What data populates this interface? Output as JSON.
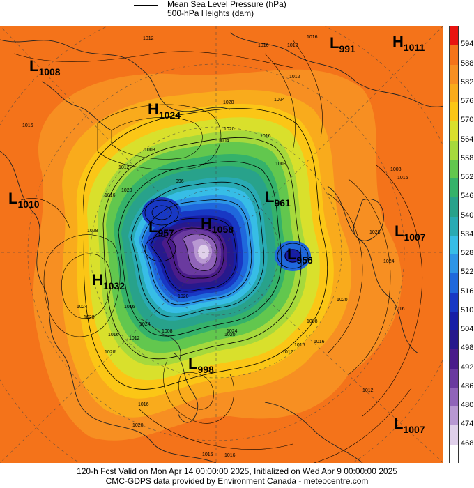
{
  "legend": {
    "line1": "Mean Sea Level Pressure (hPa)",
    "line2": "500-hPa Heights (dam)"
  },
  "footer": {
    "line1": "120-h Fcst Valid on Mon Apr 14 00:00:00 2025, Initialized on Wed Apr  9 00:00:00 2025",
    "line2": "CMC-GDPS data provided by Environment Canada - meteocentre.com"
  },
  "colorbar": {
    "labels": [
      "594",
      "588",
      "582",
      "576",
      "570",
      "564",
      "558",
      "552",
      "546",
      "540",
      "534",
      "528",
      "522",
      "516",
      "510",
      "504",
      "498",
      "492",
      "486",
      "480",
      "474",
      "468"
    ],
    "colors": [
      "#e81410",
      "#f4731a",
      "#f78f22",
      "#f9ab1c",
      "#fbc616",
      "#d9e02c",
      "#a6d93c",
      "#62c74e",
      "#35b26a",
      "#28a28b",
      "#29aab3",
      "#37bde6",
      "#2d95e6",
      "#1f68dc",
      "#1838c4",
      "#171ea6",
      "#27198c",
      "#4a1c8a",
      "#6a3a9f",
      "#9064b9",
      "#b898d2",
      "#e0d0ea",
      "#ffffff"
    ]
  },
  "pressure_centers": [
    {
      "type": "L",
      "value": "991"
    },
    {
      "type": "H",
      "value": "1011"
    },
    {
      "type": "L",
      "value": "1008"
    },
    {
      "type": "H",
      "value": "1024"
    },
    {
      "type": "L",
      "value": "1010"
    },
    {
      "type": "L",
      "value": "957"
    },
    {
      "type": "H",
      "value": "1058"
    },
    {
      "type": "L",
      "value": "961"
    },
    {
      "type": "L",
      "value": "1007"
    },
    {
      "type": "L",
      "value": "956"
    },
    {
      "type": "H",
      "value": "1032"
    },
    {
      "type": "L",
      "value": "998"
    },
    {
      "type": "L",
      "value": "1007"
    }
  ],
  "isobar_labels": [
    "1012",
    "1016",
    "1012",
    "1016",
    "1020",
    "1024",
    "1016",
    "1012",
    "1008",
    "1008",
    "1012",
    "1016",
    "1020",
    "1028",
    "1016",
    "1020",
    "996",
    "1004",
    "1008",
    "1016",
    "1024",
    "1028",
    "1024",
    "1020",
    "1016",
    "1012",
    "1016",
    "1016",
    "1024",
    "1020",
    "1016",
    "1012",
    "1008",
    "1016",
    "1020",
    "1024",
    "1008",
    "1028",
    "1020",
    "1012",
    "1016",
    "1016",
    "1020",
    "1016"
  ]
}
